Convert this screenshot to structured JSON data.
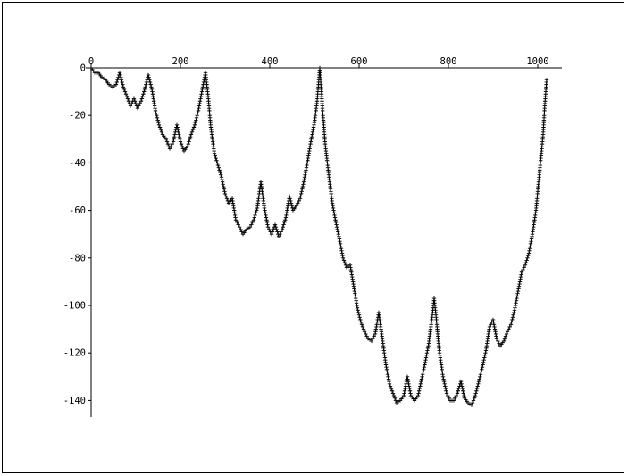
{
  "chart_data": {
    "type": "scatter",
    "marker": "+",
    "color": "#000000",
    "grid": false,
    "legend": "none",
    "xlim": [
      0,
      1024
    ],
    "ylim": [
      -146,
      0
    ],
    "x_ticks": [
      0,
      200,
      400,
      600,
      800,
      1000
    ],
    "y_ticks": [
      0,
      -20,
      -40,
      -60,
      -80,
      -100,
      -120,
      -140
    ],
    "x_tick_labels": [
      "0",
      "200",
      "400",
      "600",
      "800",
      "1000"
    ],
    "y_tick_labels": [
      "0",
      "-20",
      "-40",
      "-60",
      "-80",
      "-100",
      "-120",
      "-140"
    ],
    "series": [
      {
        "points": [
          [
            0,
            0
          ],
          [
            8,
            -2
          ],
          [
            16,
            -2
          ],
          [
            24,
            -4
          ],
          [
            32,
            -5
          ],
          [
            40,
            -7
          ],
          [
            48,
            -8
          ],
          [
            56,
            -7
          ],
          [
            64,
            -2
          ],
          [
            72,
            -8
          ],
          [
            80,
            -12
          ],
          [
            88,
            -16
          ],
          [
            96,
            -13
          ],
          [
            104,
            -17
          ],
          [
            112,
            -14
          ],
          [
            120,
            -9
          ],
          [
            128,
            -3
          ],
          [
            136,
            -9
          ],
          [
            144,
            -18
          ],
          [
            152,
            -24
          ],
          [
            160,
            -28
          ],
          [
            168,
            -30
          ],
          [
            176,
            -34
          ],
          [
            184,
            -31
          ],
          [
            192,
            -24
          ],
          [
            200,
            -31
          ],
          [
            208,
            -35
          ],
          [
            216,
            -33
          ],
          [
            224,
            -28
          ],
          [
            232,
            -24
          ],
          [
            240,
            -18
          ],
          [
            248,
            -10
          ],
          [
            256,
            -2
          ],
          [
            262,
            -12
          ],
          [
            268,
            -25
          ],
          [
            276,
            -36
          ],
          [
            284,
            -41
          ],
          [
            292,
            -46
          ],
          [
            300,
            -53
          ],
          [
            308,
            -57
          ],
          [
            316,
            -55
          ],
          [
            324,
            -64
          ],
          [
            332,
            -67
          ],
          [
            340,
            -70
          ],
          [
            348,
            -68
          ],
          [
            356,
            -67
          ],
          [
            364,
            -64
          ],
          [
            372,
            -59
          ],
          [
            380,
            -48
          ],
          [
            388,
            -59
          ],
          [
            396,
            -67
          ],
          [
            404,
            -70
          ],
          [
            412,
            -66
          ],
          [
            420,
            -71
          ],
          [
            428,
            -68
          ],
          [
            436,
            -63
          ],
          [
            444,
            -54
          ],
          [
            452,
            -60
          ],
          [
            460,
            -58
          ],
          [
            468,
            -55
          ],
          [
            476,
            -48
          ],
          [
            484,
            -40
          ],
          [
            492,
            -31
          ],
          [
            500,
            -23
          ],
          [
            506,
            -14
          ],
          [
            512,
            0
          ],
          [
            518,
            -17
          ],
          [
            524,
            -32
          ],
          [
            532,
            -45
          ],
          [
            540,
            -57
          ],
          [
            548,
            -65
          ],
          [
            556,
            -72
          ],
          [
            564,
            -80
          ],
          [
            572,
            -84
          ],
          [
            580,
            -83
          ],
          [
            588,
            -92
          ],
          [
            596,
            -101
          ],
          [
            604,
            -107
          ],
          [
            612,
            -111
          ],
          [
            620,
            -114
          ],
          [
            628,
            -115
          ],
          [
            636,
            -112
          ],
          [
            644,
            -103
          ],
          [
            652,
            -114
          ],
          [
            660,
            -125
          ],
          [
            668,
            -133
          ],
          [
            676,
            -137
          ],
          [
            684,
            -141
          ],
          [
            692,
            -140
          ],
          [
            700,
            -138
          ],
          [
            708,
            -130
          ],
          [
            716,
            -138
          ],
          [
            724,
            -140
          ],
          [
            732,
            -138
          ],
          [
            740,
            -131
          ],
          [
            748,
            -124
          ],
          [
            756,
            -116
          ],
          [
            764,
            -104
          ],
          [
            768,
            -97
          ],
          [
            772,
            -104
          ],
          [
            780,
            -120
          ],
          [
            788,
            -130
          ],
          [
            796,
            -137
          ],
          [
            804,
            -140
          ],
          [
            812,
            -140
          ],
          [
            820,
            -137
          ],
          [
            828,
            -132
          ],
          [
            836,
            -139
          ],
          [
            844,
            -141
          ],
          [
            852,
            -142
          ],
          [
            860,
            -138
          ],
          [
            868,
            -132
          ],
          [
            876,
            -126
          ],
          [
            884,
            -119
          ],
          [
            892,
            -109
          ],
          [
            900,
            -106
          ],
          [
            908,
            -114
          ],
          [
            916,
            -117
          ],
          [
            924,
            -115
          ],
          [
            932,
            -111
          ],
          [
            940,
            -108
          ],
          [
            948,
            -102
          ],
          [
            956,
            -94
          ],
          [
            964,
            -86
          ],
          [
            972,
            -83
          ],
          [
            980,
            -78
          ],
          [
            988,
            -70
          ],
          [
            996,
            -60
          ],
          [
            1004,
            -44
          ],
          [
            1012,
            -28
          ],
          [
            1016,
            -15
          ],
          [
            1020,
            -5
          ]
        ]
      }
    ]
  }
}
